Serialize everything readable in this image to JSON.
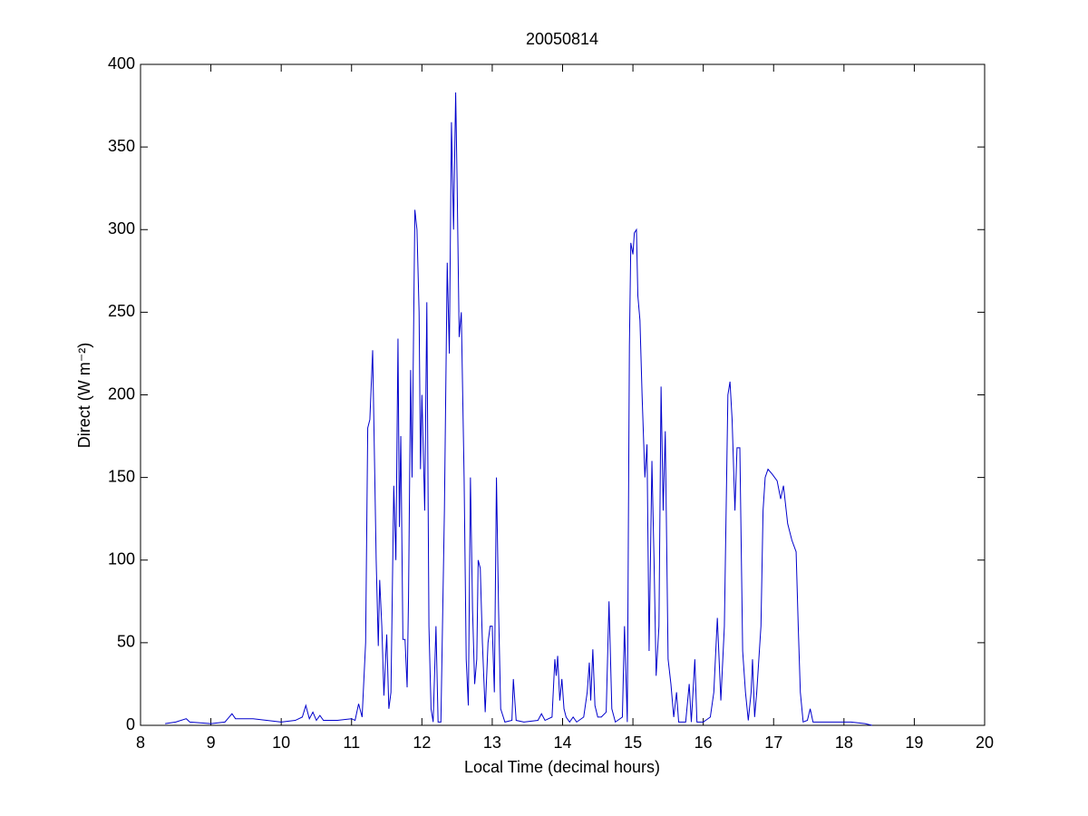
{
  "chart_data": {
    "type": "line",
    "title": "20050814",
    "xlabel": "Local Time (decimal hours)",
    "ylabel": "Direct (W m⁻²)",
    "xlim": [
      8,
      20
    ],
    "xticks": [
      8,
      9,
      10,
      11,
      12,
      13,
      14,
      15,
      16,
      17,
      18,
      19,
      20
    ],
    "ylim": [
      0,
      400
    ],
    "yticks": [
      0,
      50,
      100,
      150,
      200,
      250,
      300,
      350,
      400
    ],
    "grid": false,
    "series": [
      {
        "color": "#0000cc",
        "x": [
          8.35,
          8.5,
          8.65,
          8.7,
          9.0,
          9.2,
          9.3,
          9.35,
          9.6,
          10.0,
          10.2,
          10.3,
          10.35,
          10.4,
          10.45,
          10.5,
          10.55,
          10.6,
          10.8,
          11.0,
          11.05,
          11.1,
          11.15,
          11.2,
          11.23,
          11.26,
          11.3,
          11.35,
          11.38,
          11.4,
          11.43,
          11.46,
          11.5,
          11.53,
          11.56,
          11.6,
          11.63,
          11.66,
          11.68,
          11.7,
          11.73,
          11.76,
          11.79,
          11.81,
          11.84,
          11.86,
          11.9,
          11.93,
          11.96,
          11.98,
          12.0,
          12.04,
          12.07,
          12.1,
          12.13,
          12.16,
          12.2,
          12.23,
          12.27,
          12.32,
          12.36,
          12.39,
          12.42,
          12.45,
          12.48,
          12.5,
          12.53,
          12.56,
          12.6,
          12.63,
          12.66,
          12.69,
          12.72,
          12.75,
          12.78,
          12.8,
          12.83,
          12.86,
          12.9,
          12.94,
          12.97,
          13.0,
          13.03,
          13.06,
          13.09,
          13.12,
          13.18,
          13.28,
          13.3,
          13.34,
          13.45,
          13.65,
          13.7,
          13.75,
          13.85,
          13.89,
          13.91,
          13.93,
          13.96,
          13.99,
          14.02,
          14.05,
          14.1,
          14.15,
          14.2,
          14.3,
          14.35,
          14.38,
          14.4,
          14.43,
          14.46,
          14.5,
          14.55,
          14.62,
          14.66,
          14.7,
          14.75,
          14.85,
          14.88,
          14.92,
          14.95,
          14.97,
          15.0,
          15.02,
          15.05,
          15.07,
          15.1,
          15.13,
          15.17,
          15.2,
          15.23,
          15.27,
          15.3,
          15.33,
          15.37,
          15.4,
          15.43,
          15.46,
          15.5,
          15.54,
          15.58,
          15.62,
          15.65,
          15.75,
          15.8,
          15.83,
          15.88,
          15.91,
          16.0,
          16.1,
          16.15,
          16.2,
          16.25,
          16.3,
          16.35,
          16.38,
          16.41,
          16.45,
          16.48,
          16.52,
          16.56,
          16.6,
          16.64,
          16.68,
          16.7,
          16.73,
          16.76,
          16.82,
          16.85,
          16.88,
          16.92,
          16.98,
          17.05,
          17.1,
          17.14,
          17.2,
          17.26,
          17.32,
          17.35,
          17.38,
          17.42,
          17.48,
          17.52,
          17.56,
          17.7,
          17.9,
          18.1,
          18.3,
          18.4
        ],
        "values": [
          1,
          2,
          4,
          2,
          1,
          2,
          7,
          4,
          4,
          2,
          3,
          5,
          12,
          4,
          8,
          3,
          6,
          3,
          3,
          4,
          3,
          13,
          5,
          50,
          180,
          185,
          227,
          100,
          48,
          88,
          60,
          18,
          55,
          10,
          20,
          145,
          100,
          234,
          120,
          175,
          52,
          52,
          23,
          78,
          215,
          150,
          312,
          300,
          250,
          155,
          200,
          130,
          256,
          60,
          10,
          2,
          60,
          2,
          2,
          130,
          280,
          225,
          365,
          300,
          383,
          330,
          235,
          250,
          150,
          40,
          12,
          150,
          70,
          25,
          40,
          100,
          95,
          50,
          8,
          50,
          60,
          60,
          20,
          150,
          70,
          10,
          2,
          3,
          28,
          3,
          2,
          3,
          7,
          3,
          5,
          40,
          30,
          42,
          15,
          28,
          10,
          5,
          2,
          5,
          2,
          5,
          20,
          38,
          15,
          46,
          12,
          5,
          5,
          8,
          75,
          10,
          2,
          5,
          60,
          2,
          230,
          292,
          285,
          298,
          300,
          260,
          245,
          200,
          150,
          170,
          45,
          160,
          100,
          30,
          60,
          205,
          130,
          178,
          40,
          25,
          5,
          20,
          2,
          2,
          25,
          2,
          40,
          2,
          2,
          5,
          20,
          65,
          15,
          60,
          200,
          208,
          185,
          130,
          168,
          168,
          45,
          20,
          3,
          20,
          40,
          5,
          20,
          60,
          130,
          150,
          155,
          152,
          148,
          137,
          145,
          122,
          112,
          105,
          60,
          20,
          2,
          3,
          10,
          2,
          2,
          2,
          2,
          1,
          0
        ]
      }
    ]
  }
}
